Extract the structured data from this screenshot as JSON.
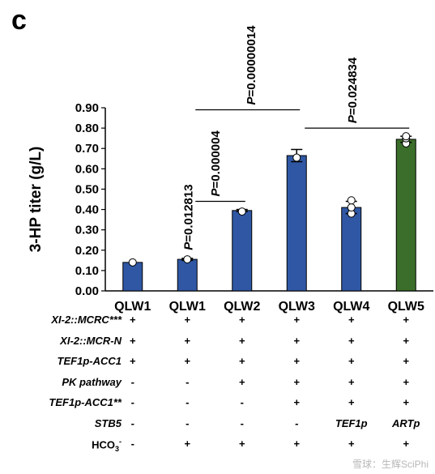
{
  "panel_label": "c",
  "chart_data": {
    "type": "bar",
    "categories": [
      "QLW1",
      "QLW1",
      "QLW2",
      "QLW3",
      "QLW4",
      "QLW5"
    ],
    "values": [
      0.14,
      0.155,
      0.395,
      0.665,
      0.41,
      0.745
    ],
    "errors": [
      0.0,
      0.005,
      0.005,
      0.03,
      0.03,
      0.015
    ],
    "points": [
      [
        0.14
      ],
      [
        0.155
      ],
      [
        0.39
      ],
      [
        0.655
      ],
      [
        0.38,
        0.41,
        0.445
      ],
      [
        0.725,
        0.75,
        0.76
      ]
    ],
    "bar_colors": [
      "#2f57a4",
      "#2f57a4",
      "#2f57a4",
      "#2f57a4",
      "#2f57a4",
      "#3b6e2a"
    ],
    "ylabel": "3-HP titer (g/L)",
    "ylim": [
      0,
      0.9
    ],
    "yticks": [
      "0.00",
      "0.10",
      "0.20",
      "0.30",
      "0.40",
      "0.50",
      "0.60",
      "0.70",
      "0.80",
      "0.90"
    ],
    "annotations": [
      {
        "text": "P=0.012813",
        "over_bar": 1
      },
      {
        "text": "P=0.000004",
        "from_bar": 1,
        "to_bar": 2
      },
      {
        "text": "P=0.00000014",
        "from_bar": 1,
        "to_bar": 3
      },
      {
        "text": "P=0.024834",
        "from_bar": 3,
        "to_bar": 5
      }
    ]
  },
  "table": {
    "rows": [
      {
        "label": "XI-2::MCRC***",
        "values": [
          "+",
          "+",
          "+",
          "+",
          "+",
          "+"
        ]
      },
      {
        "label": "XI-2::MCR-N",
        "values": [
          "+",
          "+",
          "+",
          "+",
          "+",
          "+"
        ]
      },
      {
        "label": "TEF1p-ACC1",
        "values": [
          "+",
          "+",
          "+",
          "+",
          "+",
          "+"
        ]
      },
      {
        "label": "PK pathway",
        "values": [
          "-",
          "-",
          "+",
          "+",
          "+",
          "+"
        ]
      },
      {
        "label": "TEF1p-ACC1**",
        "values": [
          "-",
          "-",
          "-",
          "+",
          "+",
          "+"
        ]
      },
      {
        "label": "STB5",
        "values": [
          "-",
          "-",
          "-",
          "-",
          "TEF1p",
          "ARTp"
        ]
      }
    ],
    "hco3": {
      "base": "HCO",
      "sub": "3",
      "sup": "-",
      "values": [
        "-",
        "+",
        "+",
        "+",
        "+",
        "+"
      ]
    }
  },
  "watermark": "雪球：生辉SciPhi"
}
